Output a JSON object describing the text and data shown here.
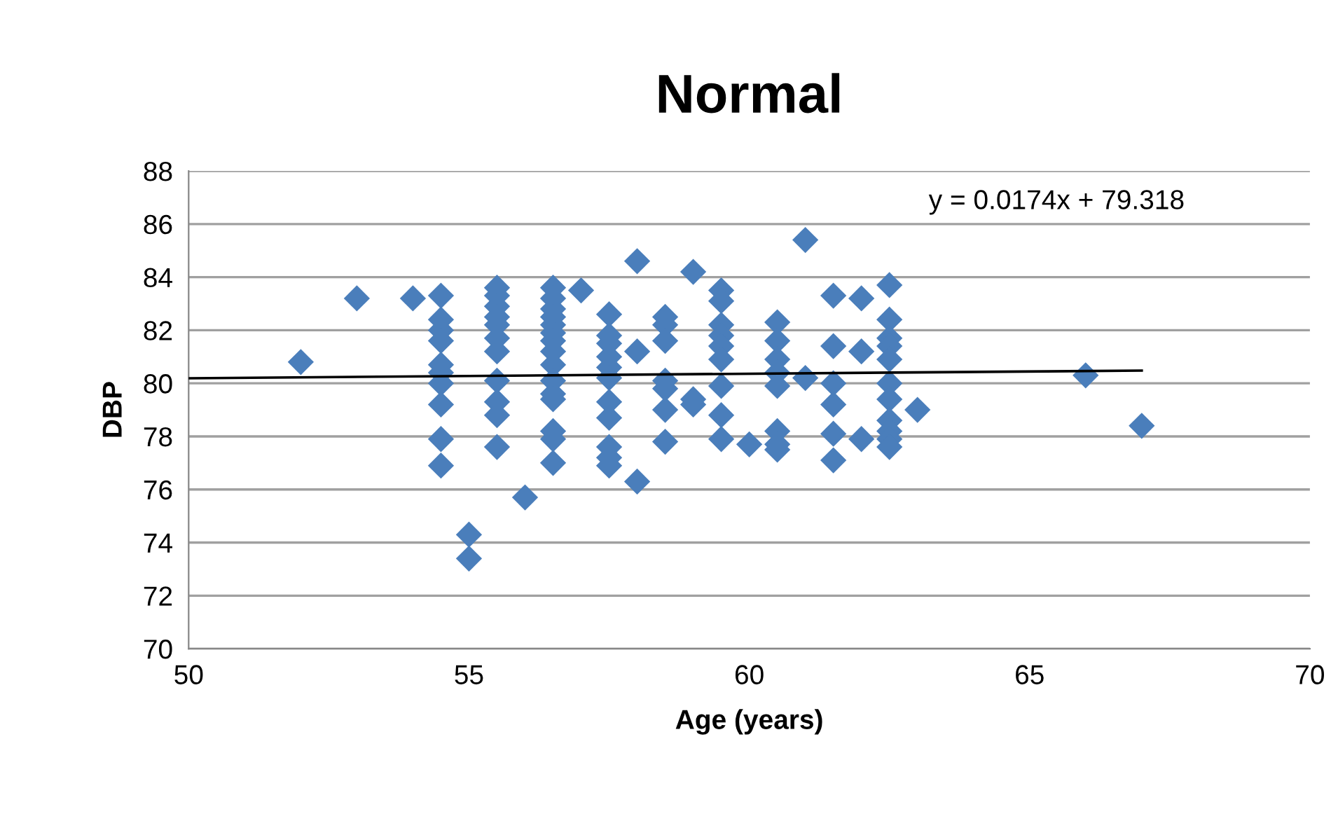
{
  "chart_data": {
    "type": "scatter",
    "title": "Normal",
    "xlabel": "Age (years)",
    "ylabel": "DBP",
    "xlim": [
      50,
      70
    ],
    "xticks": [
      50,
      55,
      60,
      65,
      70
    ],
    "ylim": [
      70,
      88
    ],
    "yticks": [
      70,
      72,
      74,
      76,
      78,
      80,
      82,
      84,
      86,
      88
    ],
    "grid": "y",
    "legend": false,
    "annotations": [
      "y = 0.0174x + 79.318"
    ],
    "series": [
      {
        "color": "#4a7ebb",
        "marker": "diamond",
        "x": [
          52,
          53,
          54,
          54.5,
          54.5,
          54.5,
          54.5,
          54.5,
          54.5,
          54.5,
          54.5,
          54.5,
          54.5,
          55,
          55,
          55.5,
          55.5,
          55.5,
          55.5,
          55.5,
          55.5,
          55.5,
          55.5,
          55.5,
          55.5,
          55.5,
          56,
          56.5,
          56.5,
          56.5,
          56.5,
          56.5,
          56.5,
          56.5,
          56.5,
          56.5,
          56.5,
          56.5,
          56.5,
          56.5,
          56.5,
          56.5,
          57,
          57.5,
          57.5,
          57.5,
          57.5,
          57.5,
          57.5,
          57.5,
          57.5,
          57.5,
          57.5,
          57.5,
          58,
          58,
          58,
          58.5,
          58.5,
          58.5,
          58.5,
          58.5,
          58.5,
          58.5,
          59,
          59,
          59,
          59.5,
          59.5,
          59.5,
          59.5,
          59.5,
          59.5,
          59.5,
          59.5,
          59.5,
          60,
          60.5,
          60.5,
          60.5,
          60.5,
          60.5,
          60.5,
          60.5,
          60.5,
          61,
          61,
          61.5,
          61.5,
          61.5,
          61.5,
          61.5,
          61.5,
          62,
          62,
          62,
          62.5,
          62.5,
          62.5,
          62.5,
          62.5,
          62.5,
          62.5,
          62.5,
          62.5,
          62.5,
          62.5,
          63,
          66,
          67
        ],
        "values": [
          80.8,
          83.2,
          83.2,
          83.3,
          82.4,
          82.0,
          81.6,
          80.7,
          80.4,
          80.0,
          79.2,
          77.9,
          76.9,
          74.3,
          73.4,
          83.6,
          83.3,
          82.9,
          82.5,
          82.2,
          81.7,
          81.2,
          80.1,
          79.3,
          78.8,
          77.6,
          75.7,
          83.6,
          83.2,
          82.8,
          82.5,
          82.2,
          81.9,
          81.6,
          81.2,
          80.7,
          80.1,
          79.6,
          79.4,
          78.2,
          77.9,
          77.0,
          83.5,
          82.6,
          81.8,
          81.5,
          81.0,
          80.6,
          80.2,
          79.3,
          78.7,
          77.6,
          77.2,
          76.9,
          84.6,
          81.2,
          76.3,
          82.5,
          82.2,
          81.6,
          80.1,
          79.8,
          79.0,
          77.8,
          84.2,
          79.4,
          79.2,
          83.5,
          83.1,
          82.2,
          81.8,
          81.4,
          80.9,
          79.9,
          78.8,
          77.9,
          77.7,
          82.3,
          81.6,
          80.9,
          80.4,
          79.9,
          78.2,
          77.7,
          77.5,
          85.4,
          80.2,
          83.3,
          81.4,
          80.0,
          79.2,
          78.1,
          77.1,
          83.2,
          81.2,
          77.9,
          83.7,
          82.4,
          81.7,
          81.4,
          80.9,
          80.0,
          79.4,
          78.6,
          78.2,
          77.9,
          77.6,
          79.0,
          80.3,
          78.4
        ]
      },
      {
        "type": "line",
        "color": "#000000",
        "marker": "none",
        "x": [
          50,
          67
        ],
        "values": [
          80.19,
          80.48
        ]
      }
    ]
  }
}
